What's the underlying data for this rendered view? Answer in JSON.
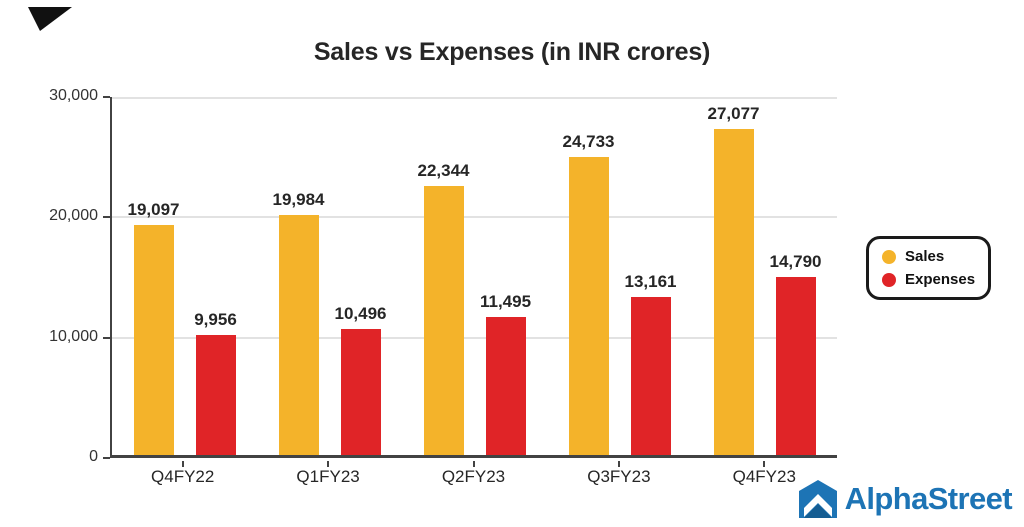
{
  "chart_data": {
    "type": "bar",
    "title": "Sales vs Expenses (in INR crores)",
    "categories": [
      "Q4FY22",
      "Q1FY23",
      "Q2FY23",
      "Q3FY23",
      "Q4FY23"
    ],
    "series": [
      {
        "name": "Sales",
        "color": "#f4b32a",
        "values": [
          19097,
          19984,
          22344,
          24733,
          27077
        ],
        "labels": [
          "19,097",
          "19,984",
          "22,344",
          "24,733",
          "27,077"
        ]
      },
      {
        "name": "Expenses",
        "color": "#e02427",
        "values": [
          9956,
          10496,
          11495,
          13161,
          14790
        ],
        "labels": [
          "9,956",
          "10,496",
          "11,495",
          "13,161",
          "14,790"
        ]
      }
    ],
    "ylim": [
      0,
      30000
    ],
    "yticks": [
      {
        "value": 0,
        "label": "0"
      },
      {
        "value": 10000,
        "label": "10,000"
      },
      {
        "value": 20000,
        "label": "20,000"
      },
      {
        "value": 30000,
        "label": "30,000"
      }
    ],
    "grid": true,
    "legend_position": "right"
  },
  "branding": {
    "logo_text": "AlphaStreet",
    "logo_color": "#1d74b5",
    "accent_black": "#111111"
  }
}
